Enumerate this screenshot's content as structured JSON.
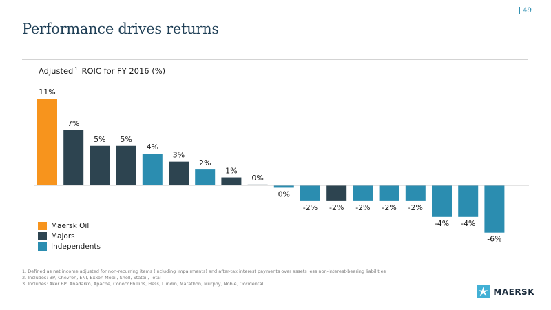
{
  "page_number": "49",
  "slide_title": "Performance drives returns",
  "chart_title": {
    "prefix": "Adjusted",
    "superscript": "1",
    "suffix": "ROIC for FY 2016 (%)"
  },
  "legend": [
    {
      "label": "Maersk Oil",
      "color": "#f7941d"
    },
    {
      "label": "Majors",
      "color": "#2d4450"
    },
    {
      "label": "Independents",
      "color": "#2b8db0"
    }
  ],
  "footnotes": [
    "1. Defined as net income adjusted for non-recurring items (including impairments) and after-tax interest payments over assets less non-interest-bearing liabilities",
    "2. Includes: BP, Chevron, ENI, Exxon Mobil, Shell, Statoil, Total",
    "3. Includes: Aker BP, Anadarko, Apache, ConocoPhillips, Hess, Lundin, Marathon, Murphy, Noble, Occidental."
  ],
  "logo": {
    "text": "MAERSK",
    "icon": "maersk-star-icon",
    "color": "#42b0d5"
  },
  "chart_data": {
    "type": "bar",
    "title": "Adjusted1 ROIC for FY 2016 (%)",
    "categories": [],
    "values": [
      11,
      7,
      5,
      5,
      4,
      3,
      2,
      1,
      0.1,
      -0.3,
      -2,
      -2,
      -2,
      -2,
      -2,
      -4,
      -4,
      -6
    ],
    "labels": [
      "11%",
      "7%",
      "5%",
      "5%",
      "4%",
      "3%",
      "2%",
      "1%",
      "0%",
      "0%",
      "-2%",
      "-2%",
      "-2%",
      "-2%",
      "-2%",
      "-4%",
      "-4%",
      "-6%"
    ],
    "groups": [
      "Maersk Oil",
      "Majors",
      "Majors",
      "Majors",
      "Independents",
      "Majors",
      "Independents",
      "Majors",
      "Majors",
      "Independents",
      "Independents",
      "Majors",
      "Independents",
      "Independents",
      "Independents",
      "Independents",
      "Independents",
      "Independents"
    ],
    "group_colors": {
      "Maersk Oil": "#f7941d",
      "Majors": "#2d4450",
      "Independents": "#2b8db0"
    },
    "ylim": [
      -6,
      11
    ],
    "grid": false,
    "legend_position": "bottom-left"
  }
}
